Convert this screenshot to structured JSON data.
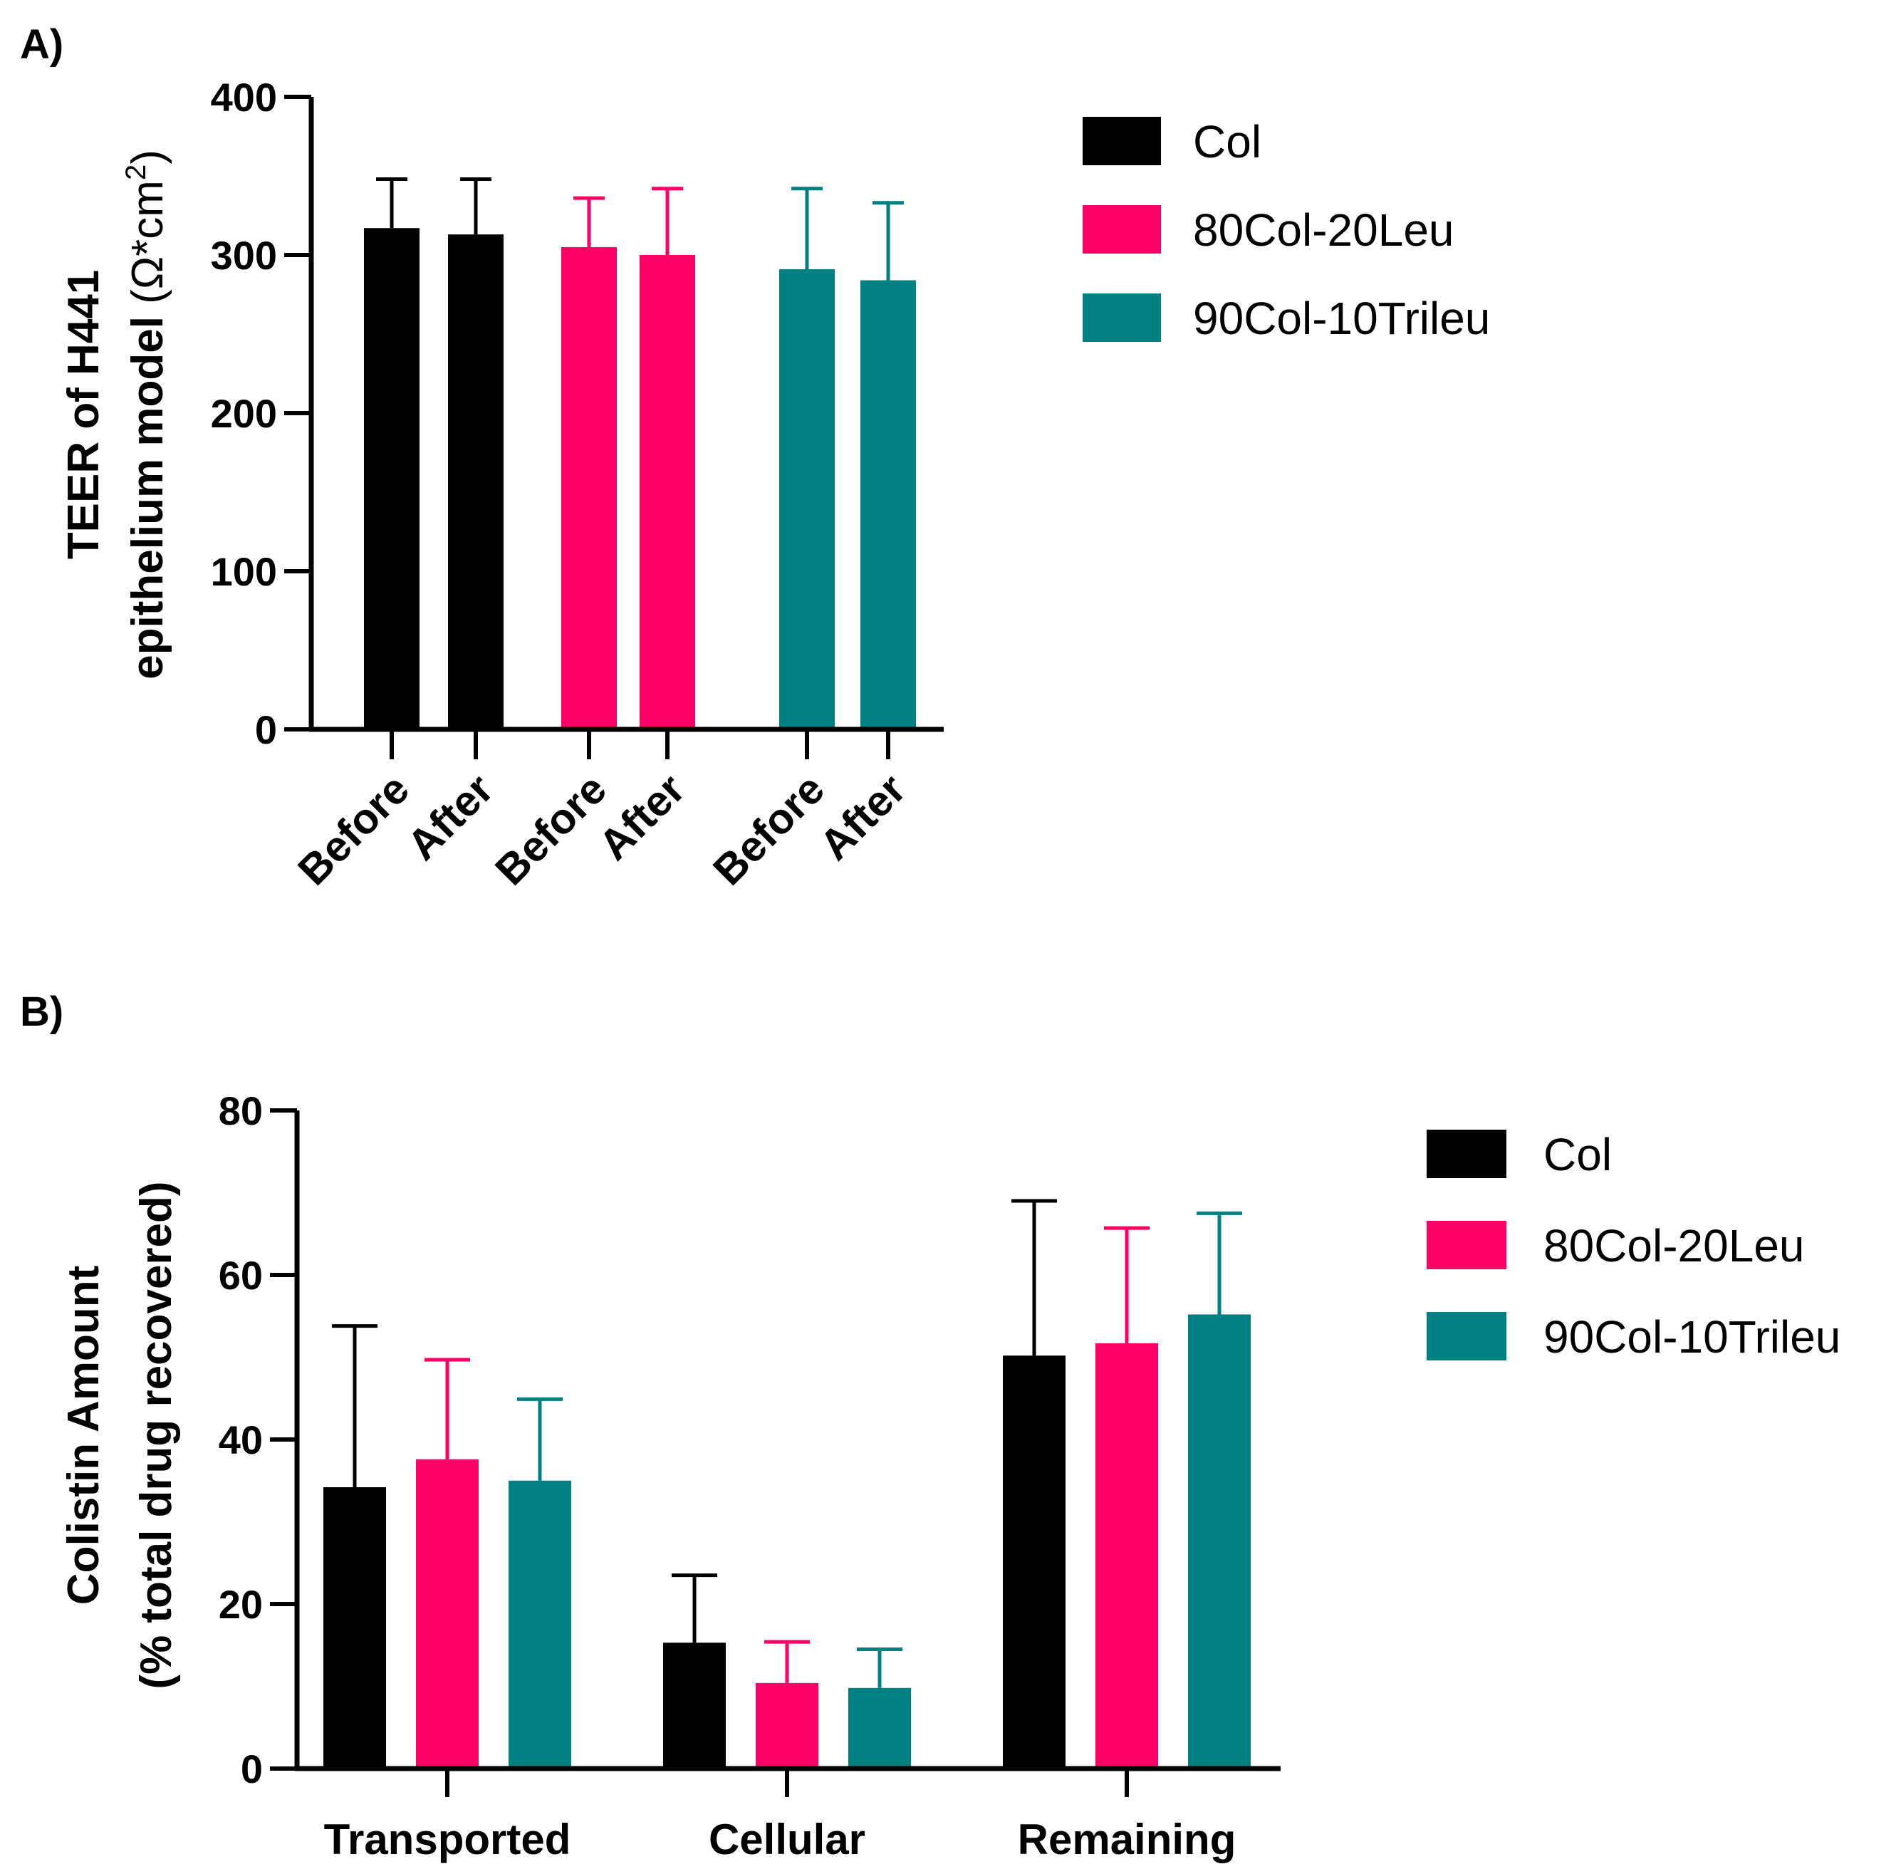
{
  "chart_data": [
    {
      "panel_label": "A)",
      "type": "bar",
      "ylabel_line1": "TEER of H441",
      "ylabel_line2": "epithelium  model",
      "ylabel_unit": "(Ω*cm",
      "ylabel_unit_sup": "2",
      "ylabel_unit_close": ")",
      "ylim": [
        0,
        400
      ],
      "yticks": [
        "0",
        "100",
        "200",
        "300",
        "400"
      ],
      "categories": [
        "Before",
        "After",
        "Before",
        "After",
        "Before",
        "After"
      ],
      "bars": [
        {
          "series": "Col",
          "category": "Before",
          "value": 317,
          "error": 31
        },
        {
          "series": "Col",
          "category": "After",
          "value": 313,
          "error": 35
        },
        {
          "series": "80Col-20Leu",
          "category": "Before",
          "value": 305,
          "error": 31
        },
        {
          "series": "80Col-20Leu",
          "category": "After",
          "value": 300,
          "error": 42
        },
        {
          "series": "90Col-10Trileu",
          "category": "Before",
          "value": 291,
          "error": 51
        },
        {
          "series": "90Col-10Trileu",
          "category": "After",
          "value": 284,
          "error": 49
        }
      ],
      "legend": [
        {
          "name": "Col",
          "color": "#000000"
        },
        {
          "name": "80Col-20Leu",
          "color": "#FF0066"
        },
        {
          "name": "90Col-10Trileu",
          "color": "#008080"
        }
      ]
    },
    {
      "panel_label": "B)",
      "type": "bar",
      "ylabel_line1": "Colistin Amount",
      "ylabel_line2": "(% total drug recovered)",
      "ylim": [
        0,
        80
      ],
      "yticks": [
        "0",
        "20",
        "40",
        "60",
        "80"
      ],
      "categories": [
        "Transported",
        "Cellular",
        "Remaining"
      ],
      "series": [
        {
          "name": "Col",
          "color": "#000000",
          "values": [
            34.2,
            15.3,
            50.2
          ],
          "errors": [
            19.6,
            8.2,
            18.8
          ]
        },
        {
          "name": "80Col-20Leu",
          "color": "#FF0066",
          "values": [
            37.6,
            10.4,
            51.7
          ],
          "errors": [
            12.1,
            5.0,
            14.0
          ]
        },
        {
          "name": "90Col-10Trileu",
          "color": "#008080",
          "values": [
            35.0,
            9.8,
            55.2
          ],
          "errors": [
            9.9,
            4.7,
            12.3
          ]
        }
      ],
      "legend": [
        {
          "name": "Col",
          "color": "#000000"
        },
        {
          "name": "80Col-20Leu",
          "color": "#FF0066"
        },
        {
          "name": "90Col-10Trileu",
          "color": "#008080"
        }
      ]
    }
  ]
}
